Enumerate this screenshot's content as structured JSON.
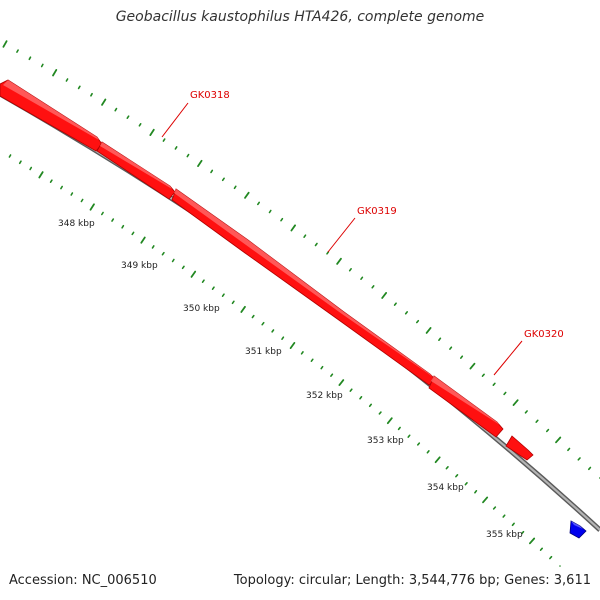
{
  "title": "Geobacillus kaustophilus HTA426, complete genome",
  "footer": {
    "accession": "Accession: NC_006510",
    "summary": "Topology: circular; Length: 3,544,776 bp; Genes: 3,611"
  },
  "ticks": [
    "348 kbp",
    "349 kbp",
    "350 kbp",
    "351 kbp",
    "352 kbp",
    "353 kbp",
    "354 kbp",
    "355 kbp"
  ],
  "genes": [
    {
      "label": "GK0318",
      "strand": "+",
      "color": "#ff0000"
    },
    {
      "label": "GK0319",
      "strand": "+",
      "color": "#ff0000"
    },
    {
      "label": "GK0320",
      "strand": "+",
      "color": "#ff0000"
    },
    {
      "label": "",
      "strand": "+",
      "color": "#ff0000"
    },
    {
      "label": "",
      "strand": "+",
      "color": "#ff0000"
    },
    {
      "label": "",
      "strand": "-",
      "color": "#0000ee"
    }
  ],
  "colors": {
    "backbone": "#999999",
    "gene_forward": "#ff0000",
    "gene_reverse": "#0000ee",
    "tick_marks": "#228822"
  }
}
